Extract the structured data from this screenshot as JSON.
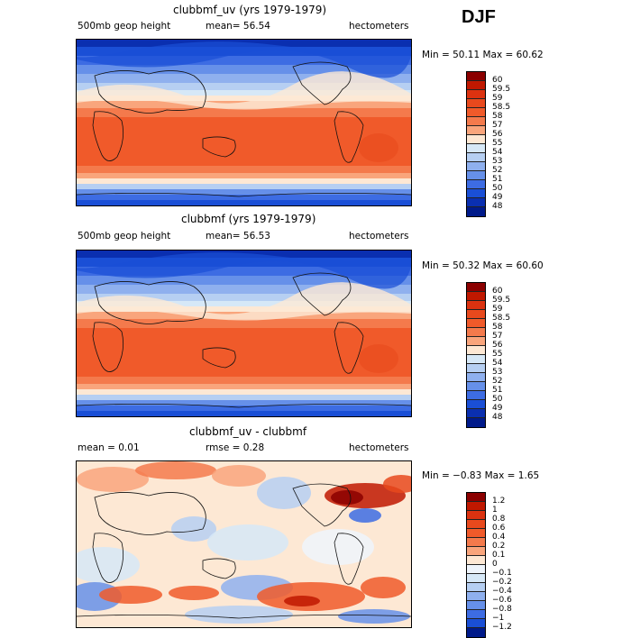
{
  "season": "DJF",
  "panels": [
    {
      "title": "clubbmf_uv (yrs 1979-1979)",
      "left_label": "500mb  geop height",
      "mean_text": "mean=   56.54",
      "units": "hectometers",
      "minmax": "Min =   50.11  Max =   60.62",
      "cbar_labels": [
        "60",
        "59.5",
        "59",
        "58.5",
        "58",
        "57",
        "56",
        "55",
        "54",
        "53",
        "52",
        "51",
        "50",
        "49",
        "48"
      ],
      "cbar_colors": [
        "#8b0000",
        "#c01800",
        "#dc3210",
        "#e8491d",
        "#f05a2a",
        "#f47a4c",
        "#f9a57c",
        "#fde8d4",
        "#d6e8f7",
        "#b6cff2",
        "#8fb0ee",
        "#6690e9",
        "#3d6ce3",
        "#1a4fd6",
        "#0a2fb0",
        "#001a8a"
      ],
      "field": "height"
    },
    {
      "title": "clubbmf (yrs 1979-1979)",
      "left_label": "500mb  geop height",
      "mean_text": "mean=   56.53",
      "units": "hectometers",
      "minmax": "Min =   50.32  Max =   60.60",
      "cbar_labels": [
        "60",
        "59.5",
        "59",
        "58.5",
        "58",
        "57",
        "56",
        "55",
        "54",
        "53",
        "52",
        "51",
        "50",
        "49",
        "48"
      ],
      "cbar_colors": [
        "#8b0000",
        "#c01800",
        "#dc3210",
        "#e8491d",
        "#f05a2a",
        "#f47a4c",
        "#f9a57c",
        "#fde8d4",
        "#d6e8f7",
        "#b6cff2",
        "#8fb0ee",
        "#6690e9",
        "#3d6ce3",
        "#1a4fd6",
        "#0a2fb0",
        "#001a8a"
      ],
      "field": "height"
    },
    {
      "title": "clubbmf_uv - clubbmf",
      "left_label": "mean =    0.01",
      "mean_text": "rmse =    0.28",
      "units": "hectometers",
      "minmax": "Min =  −0.83  Max =    1.65",
      "cbar_labels": [
        "1.2",
        "1",
        "0.8",
        "0.6",
        "0.4",
        "0.2",
        "0.1",
        "0",
        "−0.1",
        "−0.2",
        "−0.4",
        "−0.6",
        "−0.8",
        "−1",
        "−1.2"
      ],
      "cbar_colors": [
        "#8b0000",
        "#c01800",
        "#dc3210",
        "#e8491d",
        "#f05a2a",
        "#f47a4c",
        "#f9a57c",
        "#fde8d4",
        "#eef4fb",
        "#d6e8f7",
        "#b6cff2",
        "#8fb0ee",
        "#6690e9",
        "#3d6ce3",
        "#1a4fd6",
        "#001a8a"
      ],
      "field": "diff"
    }
  ],
  "chart_data": [
    {
      "type": "heatmap",
      "title": "clubbmf_uv (yrs 1979-1979)",
      "variable": "500mb geop height",
      "units": "hectometers",
      "mean": 56.54,
      "min": 50.11,
      "max": 60.62,
      "contour_levels": [
        48,
        49,
        50,
        51,
        52,
        53,
        54,
        55,
        56,
        57,
        58,
        58.5,
        59,
        59.5,
        60
      ]
    },
    {
      "type": "heatmap",
      "title": "clubbmf (yrs 1979-1979)",
      "variable": "500mb geop height",
      "units": "hectometers",
      "mean": 56.53,
      "min": 50.32,
      "max": 60.6,
      "contour_levels": [
        48,
        49,
        50,
        51,
        52,
        53,
        54,
        55,
        56,
        57,
        58,
        58.5,
        59,
        59.5,
        60
      ]
    },
    {
      "type": "heatmap",
      "title": "clubbmf_uv - clubbmf",
      "units": "hectometers",
      "mean": 0.01,
      "rmse": 0.28,
      "min": -0.83,
      "max": 1.65,
      "contour_levels": [
        -1.2,
        -1,
        -0.8,
        -0.6,
        -0.4,
        -0.2,
        -0.1,
        0,
        0.1,
        0.2,
        0.4,
        0.6,
        0.8,
        1,
        1.2
      ]
    }
  ]
}
